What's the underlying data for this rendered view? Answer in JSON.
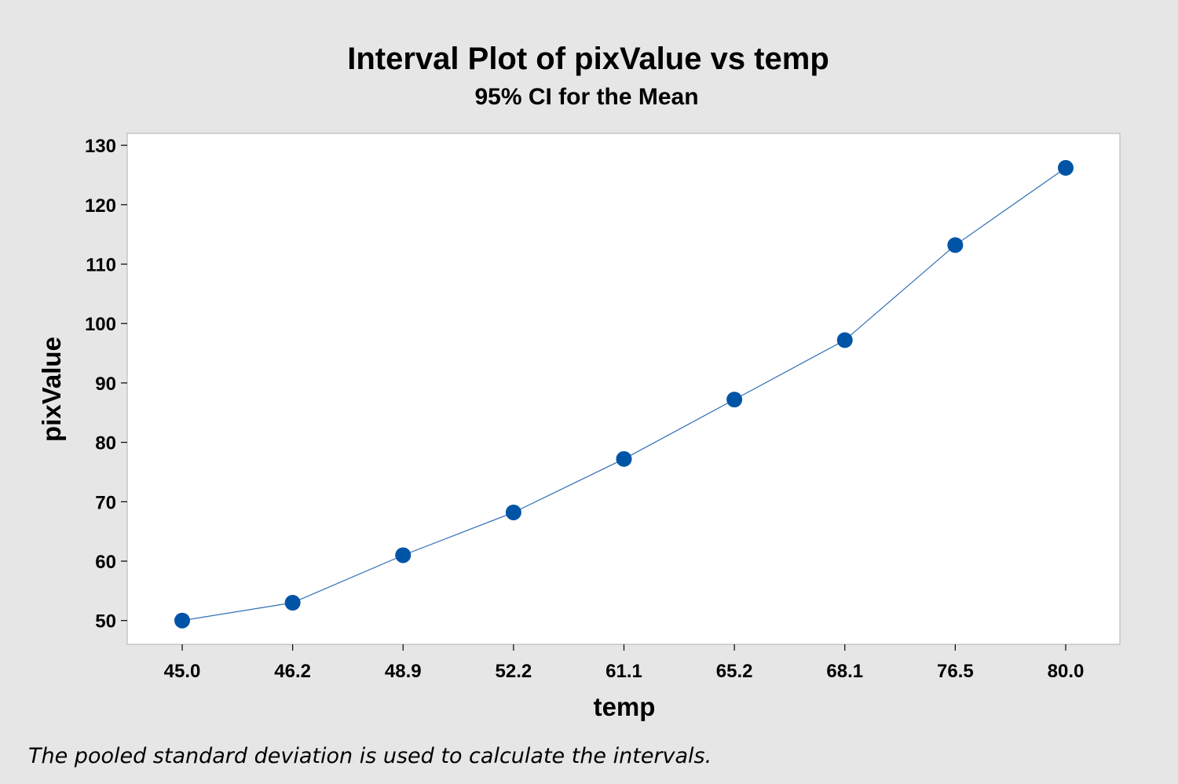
{
  "chart_data": {
    "type": "line",
    "title": "Interval Plot of pixValue vs temp",
    "subtitle": "95% CI for the Mean",
    "xlabel": "temp",
    "ylabel": "pixValue",
    "categories": [
      "45.0",
      "46.2",
      "48.9",
      "52.2",
      "61.1",
      "65.2",
      "68.1",
      "76.5",
      "80.0"
    ],
    "series": [
      {
        "values": [
          50,
          53,
          61,
          68.2,
          77.2,
          87.2,
          97.2,
          113.2,
          126.2
        ]
      }
    ],
    "ylim": [
      46,
      132
    ],
    "yticks": [
      50,
      60,
      70,
      80,
      90,
      100,
      110,
      120,
      130
    ],
    "grid": false,
    "legend": "none",
    "footnote": "The pooled standard deviation is used to calculate the intervals.",
    "colors": {
      "background": "#e6e6e6",
      "plot_area": "#ffffff",
      "marker": "#0054a6",
      "line": "#2e6fb3"
    }
  }
}
